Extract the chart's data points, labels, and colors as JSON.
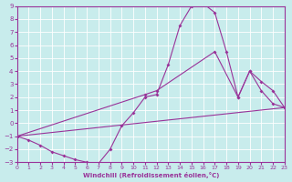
{
  "xlabel": "Windchill (Refroidissement éolien,°C)",
  "bg_color": "#c8ecec",
  "line_color": "#993399",
  "grid_color": "#ffffff",
  "xlim": [
    0,
    23
  ],
  "ylim": [
    -3,
    9
  ],
  "xticks": [
    0,
    1,
    2,
    3,
    4,
    5,
    6,
    7,
    8,
    9,
    10,
    11,
    12,
    13,
    14,
    15,
    16,
    17,
    18,
    19,
    20,
    21,
    22,
    23
  ],
  "yticks": [
    -3,
    -2,
    -1,
    0,
    1,
    2,
    3,
    4,
    5,
    6,
    7,
    8,
    9
  ],
  "curve1_x": [
    0,
    1,
    2,
    3,
    4,
    5,
    6,
    7,
    8,
    9,
    10,
    11,
    12,
    13,
    14,
    15,
    16,
    17,
    18,
    19,
    20,
    21,
    22,
    23
  ],
  "curve1_y": [
    -1.0,
    -1.3,
    -1.7,
    -2.2,
    -2.5,
    -2.8,
    -3.0,
    -3.1,
    -2.0,
    -0.2,
    0.8,
    2.0,
    2.2,
    4.5,
    7.5,
    9.0,
    9.2,
    8.5,
    5.5,
    2.0,
    4.0,
    2.5,
    1.5,
    1.2
  ],
  "curve2_x": [
    0,
    11,
    12,
    17,
    19,
    20,
    21,
    22,
    23
  ],
  "curve2_y": [
    -1.0,
    2.2,
    2.5,
    5.5,
    2.0,
    4.0,
    3.2,
    2.5,
    1.2
  ],
  "curve3_x": [
    0,
    23
  ],
  "curve3_y": [
    -1.0,
    1.2
  ]
}
